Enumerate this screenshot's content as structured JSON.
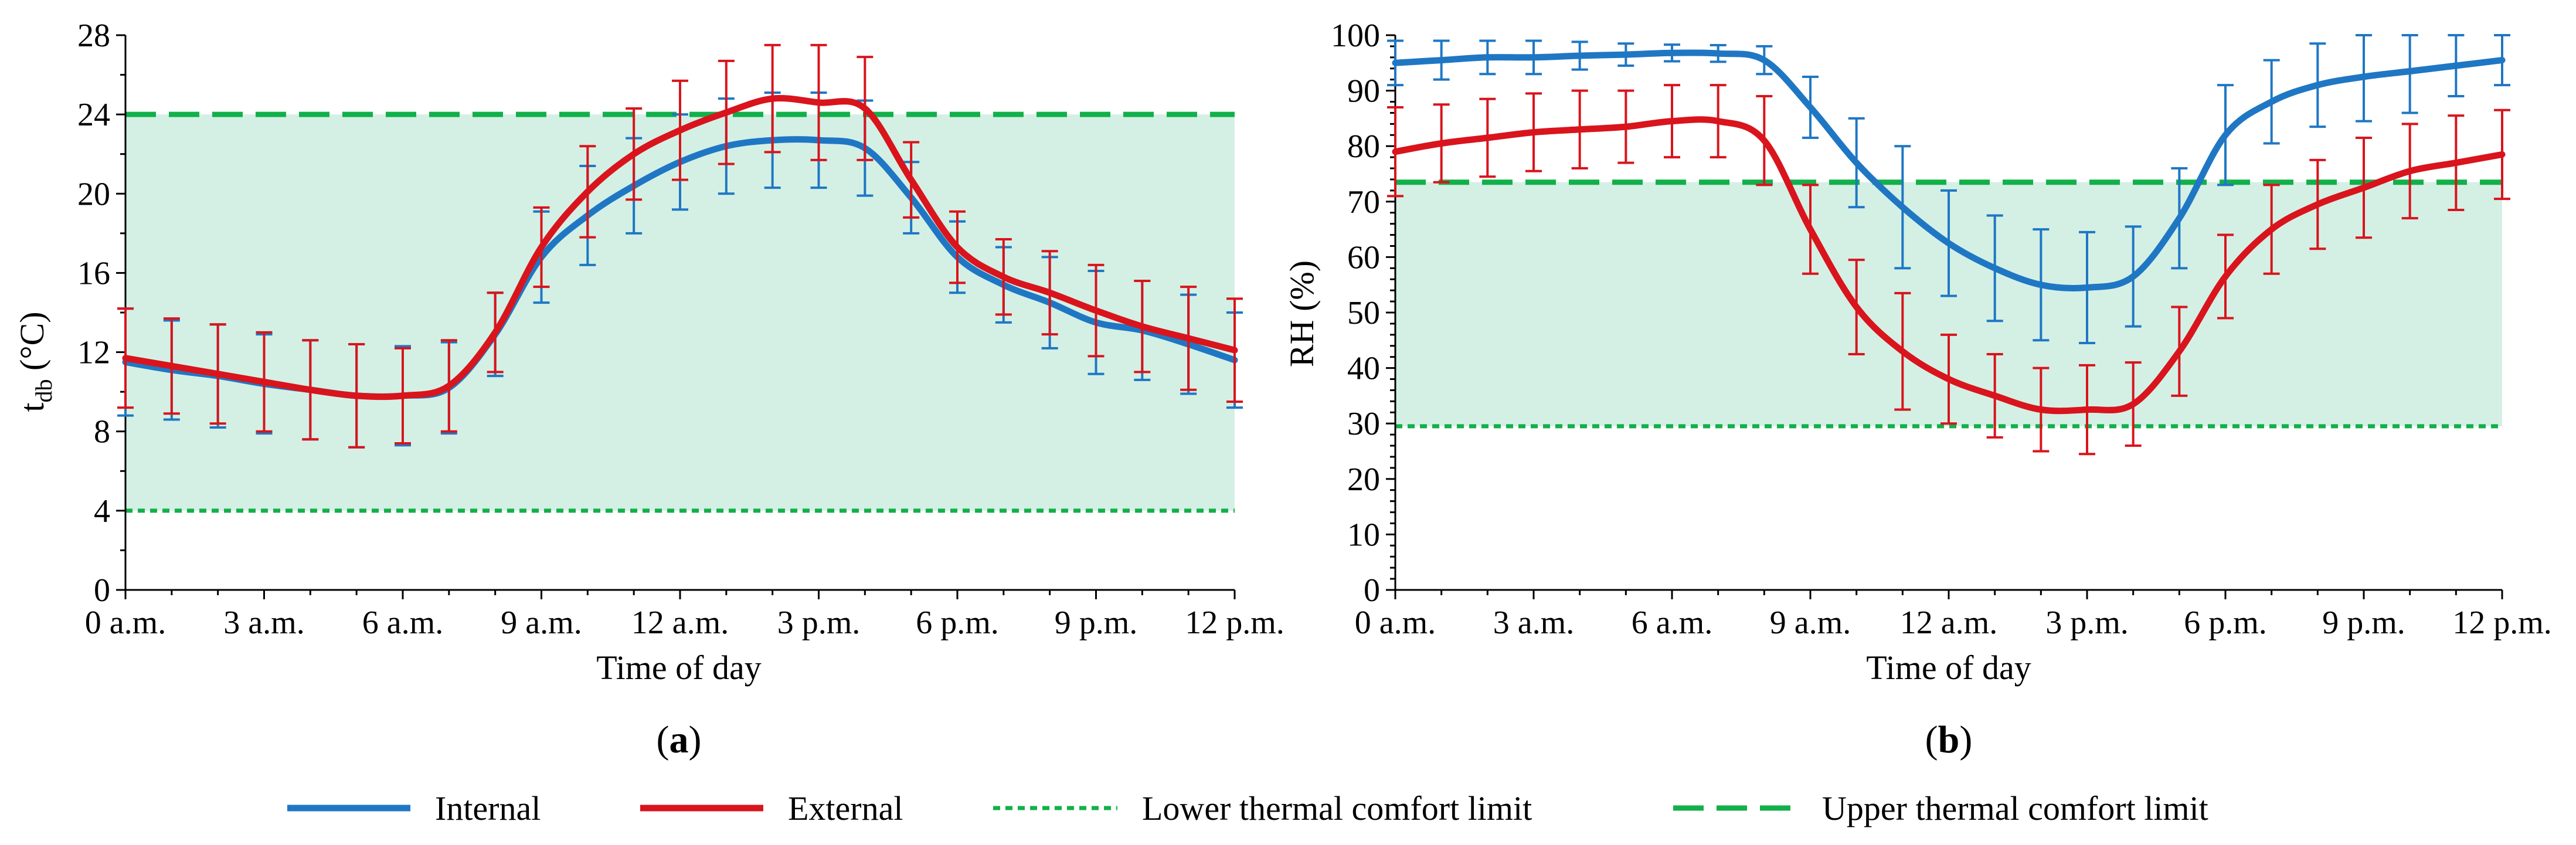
{
  "chart_data": [
    {
      "type": "line",
      "panel_label": "(a)",
      "panel_letter": "a",
      "xlabel": "Time of day",
      "ylabel_main": "t",
      "ylabel_sub": "db",
      "ylabel_unit": " (°C)",
      "xlim": [
        0,
        24
      ],
      "ylim": [
        0,
        28
      ],
      "x_ticks": [
        0,
        3,
        6,
        9,
        12,
        15,
        18,
        21,
        24
      ],
      "x_tick_labels": [
        "0 a.m.",
        "3 a.m.",
        "6 a.m.",
        "9 a.m.",
        "12 a.m.",
        "3 p.m.",
        "6 p.m.",
        "9 p.m.",
        "12 p.m."
      ],
      "y_ticks": [
        0,
        4,
        8,
        12,
        16,
        20,
        24,
        28
      ],
      "y_tick_labels": [
        "0",
        "4",
        "8",
        "12",
        "16",
        "20",
        "24",
        "28"
      ],
      "comfort_band": [
        4,
        24
      ],
      "lower_limit": 4,
      "upper_limit": 24,
      "errorbar_x": [
        0,
        1,
        2,
        3,
        4,
        5,
        6,
        7,
        8,
        9,
        10,
        11,
        12,
        13,
        14,
        15,
        16,
        17,
        18,
        19,
        20,
        21,
        22,
        23,
        24
      ],
      "series": [
        {
          "name": "Internal",
          "color": "#1f77c4",
          "x": [
            0,
            1,
            2,
            3,
            4,
            5,
            6,
            7,
            8,
            9,
            10,
            11,
            12,
            13,
            14,
            15,
            16,
            17,
            18,
            19,
            20,
            21,
            22,
            23,
            24
          ],
          "y": [
            11.5,
            11.1,
            10.8,
            10.4,
            10.1,
            9.8,
            9.8,
            10.2,
            12.9,
            16.8,
            18.9,
            20.4,
            21.6,
            22.4,
            22.7,
            22.7,
            22.3,
            19.8,
            16.8,
            15.4,
            14.5,
            13.5,
            13.1,
            12.4,
            11.6
          ],
          "err": [
            2.7,
            2.5,
            2.6,
            2.5,
            2.5,
            2.6,
            2.5,
            2.3,
            2.1,
            2.3,
            2.5,
            2.4,
            2.4,
            2.4,
            2.4,
            2.4,
            2.4,
            1.8,
            1.8,
            1.9,
            2.3,
            2.6,
            2.5,
            2.5,
            2.4
          ]
        },
        {
          "name": "External",
          "color": "#d9141c",
          "x": [
            0,
            1,
            2,
            3,
            4,
            5,
            6,
            7,
            8,
            9,
            10,
            11,
            12,
            13,
            14,
            15,
            16,
            17,
            18,
            19,
            20,
            21,
            22,
            23,
            24
          ],
          "y": [
            11.7,
            11.3,
            10.9,
            10.5,
            10.1,
            9.8,
            9.8,
            10.3,
            13.0,
            17.3,
            20.1,
            22.0,
            23.2,
            24.1,
            24.8,
            24.6,
            24.3,
            20.7,
            17.3,
            15.8,
            15.0,
            14.1,
            13.3,
            12.7,
            12.1
          ],
          "err": [
            2.5,
            2.4,
            2.5,
            2.5,
            2.5,
            2.6,
            2.4,
            2.3,
            2.0,
            2.0,
            2.3,
            2.3,
            2.5,
            2.6,
            2.7,
            2.9,
            2.6,
            1.9,
            1.8,
            1.9,
            2.1,
            2.3,
            2.3,
            2.6,
            2.6
          ]
        }
      ]
    },
    {
      "type": "line",
      "panel_label": "(b)",
      "panel_letter": "b",
      "xlabel": "Time of day",
      "ylabel_main": "RH (%)",
      "xlim": [
        0,
        24
      ],
      "ylim": [
        0,
        100
      ],
      "x_ticks": [
        0,
        3,
        6,
        9,
        12,
        15,
        18,
        21,
        24
      ],
      "x_tick_labels": [
        "0 a.m.",
        "3 a.m.",
        "6 a.m.",
        "9 a.m.",
        "12 a.m.",
        "3 p.m.",
        "6 p.m.",
        "9 p.m.",
        "12 p.m."
      ],
      "y_ticks": [
        0,
        10,
        20,
        30,
        40,
        50,
        60,
        70,
        80,
        90,
        100
      ],
      "y_tick_labels": [
        "0",
        "10",
        "20",
        "30",
        "40",
        "50",
        "60",
        "70",
        "80",
        "90",
        "100"
      ],
      "comfort_band": [
        29.5,
        73.5
      ],
      "lower_limit": 29.5,
      "upper_limit": 73.5,
      "errorbar_x": [
        0,
        1,
        2,
        3,
        4,
        5,
        6,
        7,
        8,
        9,
        10,
        11,
        12,
        13,
        14,
        15,
        16,
        17,
        18,
        19,
        20,
        21,
        22,
        23,
        24
      ],
      "series": [
        {
          "name": "Internal",
          "color": "#1f77c4",
          "x": [
            0,
            1,
            2,
            3,
            4,
            5,
            6,
            7,
            8,
            9,
            10,
            11,
            12,
            13,
            14,
            15,
            16,
            17,
            18,
            19,
            20,
            21,
            22,
            23,
            24
          ],
          "y": [
            95.0,
            95.5,
            96.0,
            96.0,
            96.3,
            96.5,
            96.8,
            96.7,
            95.5,
            87.0,
            77.0,
            69.0,
            62.5,
            58.0,
            55.0,
            54.5,
            56.5,
            67.0,
            82.0,
            88.0,
            91.0,
            92.5,
            93.5,
            94.5,
            95.5
          ],
          "err": [
            4.0,
            3.5,
            3.0,
            3.0,
            2.5,
            2.0,
            1.5,
            1.5,
            2.5,
            5.5,
            8.0,
            11.0,
            9.5,
            9.5,
            10.0,
            10.0,
            9.0,
            9.0,
            9.0,
            7.5,
            7.5,
            8.0,
            7.5,
            5.5,
            4.5
          ]
        },
        {
          "name": "External",
          "color": "#d9141c",
          "x": [
            0,
            1,
            2,
            3,
            4,
            5,
            6,
            7,
            8,
            9,
            10,
            11,
            12,
            13,
            14,
            15,
            16,
            17,
            18,
            19,
            20,
            21,
            22,
            23,
            24
          ],
          "y": [
            79.0,
            80.5,
            81.5,
            82.5,
            83.0,
            83.5,
            84.5,
            84.5,
            81.0,
            65.0,
            51.0,
            43.0,
            38.0,
            35.0,
            32.5,
            32.5,
            33.5,
            43.0,
            56.5,
            65.0,
            69.5,
            72.5,
            75.5,
            77.0,
            78.5
          ],
          "err": [
            8.0,
            7.0,
            7.0,
            7.0,
            7.0,
            6.5,
            6.5,
            6.5,
            8.0,
            8.0,
            8.5,
            10.5,
            8.0,
            7.5,
            7.5,
            8.0,
            7.5,
            8.0,
            7.5,
            8.0,
            8.0,
            9.0,
            8.5,
            8.5,
            8.0
          ]
        }
      ]
    }
  ],
  "legend": {
    "items": [
      {
        "label": "Internal",
        "style": "solid",
        "color": "#1f77c4"
      },
      {
        "label": "External",
        "style": "solid",
        "color": "#d9141c"
      },
      {
        "label": "Lower thermal comfort limit",
        "style": "dotted",
        "color": "#12b04a"
      },
      {
        "label": "Upper thermal comfort limit",
        "style": "dashed",
        "color": "#12b04a"
      }
    ]
  },
  "colors": {
    "comfort_band_fill": "#d4f0e5",
    "limit_line": "#12b04a",
    "internal": "#1f77c4",
    "external": "#d9141c"
  }
}
